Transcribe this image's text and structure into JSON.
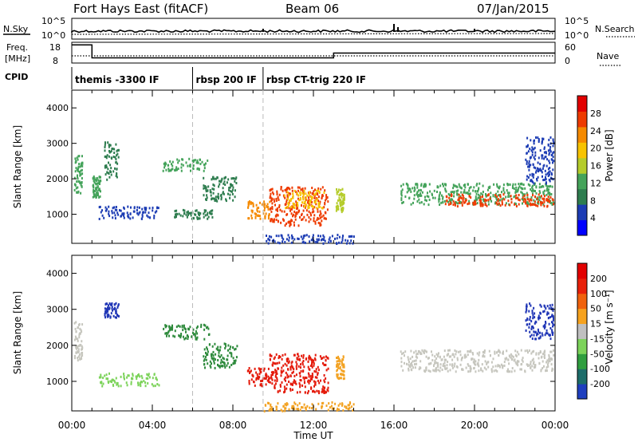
{
  "header": {
    "station": "Fort Hays East (fitACF)",
    "beam": "Beam 06",
    "date": "07/Jan/2015"
  },
  "summary": {
    "nsky_label": "N.Sky",
    "nsearch_label": "N.Search",
    "freq_label_line1": "Freq.",
    "freq_label_line2": "[MHz]",
    "nave_label": "Nave",
    "cpid_label": "CPID",
    "nsky_ticks": [
      "10^5",
      "10^0"
    ],
    "nsearch_ticks": [
      "10^5",
      "10^0"
    ],
    "freq_ticks": [
      "18",
      "8"
    ],
    "nave_ticks": [
      "60",
      "0"
    ],
    "cpid_segments": [
      {
        "start_hour": 0.0,
        "end_hour": 6.0,
        "label": "themis -3300 IF"
      },
      {
        "start_hour": 6.0,
        "end_hour": 9.5,
        "label": "rbsp 200 IF"
      },
      {
        "start_hour": 9.5,
        "end_hour": 24.0,
        "label": "rbsp CT-trig 220 IF"
      }
    ],
    "freq_mhz": [
      {
        "start_hour": 0.0,
        "end_hour": 1.0,
        "value": 17.5
      },
      {
        "start_hour": 1.0,
        "end_hour": 13.0,
        "value": 10.7
      },
      {
        "start_hour": 13.0,
        "end_hour": 24.0,
        "value": 13.2
      }
    ]
  },
  "chart_data": [
    {
      "type": "heatmap",
      "name": "power",
      "ylabel": "Slant Range [km]",
      "xlabel": "Time UT",
      "xlim_hours": [
        0,
        24
      ],
      "ylim_km": [
        180,
        4500
      ],
      "yticks": [
        "1000",
        "2000",
        "3000",
        "4000"
      ],
      "xticks": [
        "00:00",
        "04:00",
        "08:00",
        "12:00",
        "16:00",
        "20:00",
        "00:00"
      ],
      "colorbar_label": "Power [dB]",
      "colorbar_ticks": [
        "28",
        "24",
        "20",
        "16",
        "12",
        "8",
        "4"
      ],
      "colorbar_range": [
        0,
        30
      ],
      "colorbar_colors": [
        "#0000ff",
        "#1c3cb4",
        "#2e7d4f",
        "#44a35a",
        "#b5cc2b",
        "#f7c300",
        "#f58a00",
        "#ee3b00",
        "#e20000"
      ],
      "blobs": [
        {
          "t0": 0.1,
          "t1": 0.5,
          "r0": 1600,
          "r1": 2700,
          "level": 12
        },
        {
          "t0": 1.0,
          "t1": 1.4,
          "r0": 1500,
          "r1": 2100,
          "level": 10
        },
        {
          "t0": 1.6,
          "t1": 2.3,
          "r0": 2000,
          "r1": 3100,
          "level": 8
        },
        {
          "t0": 1.3,
          "t1": 4.3,
          "r0": 900,
          "r1": 1250,
          "level": 6
        },
        {
          "t0": 4.5,
          "t1": 6.8,
          "r0": 2250,
          "r1": 2600,
          "level": 12
        },
        {
          "t0": 5.0,
          "t1": 7.0,
          "r0": 900,
          "r1": 1150,
          "level": 7
        },
        {
          "t0": 6.5,
          "t1": 8.2,
          "r0": 1400,
          "r1": 2100,
          "level": 8
        },
        {
          "t0": 8.7,
          "t1": 9.8,
          "r0": 900,
          "r1": 1400,
          "level": 22
        },
        {
          "t0": 9.8,
          "t1": 12.7,
          "r0": 700,
          "r1": 1800,
          "level": 26
        },
        {
          "t0": 10.5,
          "t1": 12.5,
          "r0": 1200,
          "r1": 1700,
          "level": 18
        },
        {
          "t0": 13.1,
          "t1": 13.5,
          "r0": 1100,
          "r1": 1750,
          "level": 14
        },
        {
          "t0": 16.3,
          "t1": 23.9,
          "r0": 1300,
          "r1": 1900,
          "level": 10
        },
        {
          "t0": 18.5,
          "t1": 23.9,
          "r0": 1250,
          "r1": 1600,
          "level": 24
        },
        {
          "t0": 22.5,
          "t1": 23.9,
          "r0": 1900,
          "r1": 3200,
          "level": 6
        },
        {
          "t0": 9.5,
          "t1": 14.0,
          "r0": 200,
          "r1": 450,
          "level": 6
        }
      ]
    },
    {
      "type": "heatmap",
      "name": "velocity",
      "ylabel": "Slant Range [km]",
      "xlabel": "Time UT",
      "xlim_hours": [
        0,
        24
      ],
      "ylim_km": [
        180,
        4500
      ],
      "yticks": [
        "1000",
        "2000",
        "3000",
        "4000"
      ],
      "xticks": [
        "00:00",
        "04:00",
        "08:00",
        "12:00",
        "16:00",
        "20:00",
        "00:00"
      ],
      "colorbar_label": "Velocity [m s⁻¹]",
      "colorbar_ticks": [
        "200",
        "100",
        "50",
        "15",
        "-15",
        "-50",
        "-100",
        "-200"
      ],
      "colorbar_colors": [
        "#1f3fbf",
        "#1d6d6a",
        "#2f9e3f",
        "#7cd35a",
        "#c0c0c0",
        "#f6a21e",
        "#f0620d",
        "#e8200a",
        "#e20000"
      ],
      "blobs": [
        {
          "t0": 0.1,
          "t1": 0.5,
          "r0": 1600,
          "r1": 2700,
          "level": "gray"
        },
        {
          "t0": 1.6,
          "t1": 2.3,
          "r0": 2800,
          "r1": 3200,
          "level": "blue"
        },
        {
          "t0": 1.3,
          "t1": 4.3,
          "r0": 900,
          "r1": 1250,
          "level": "lightgreen"
        },
        {
          "t0": 4.5,
          "t1": 6.8,
          "r0": 2200,
          "r1": 2600,
          "level": "green"
        },
        {
          "t0": 6.5,
          "t1": 8.2,
          "r0": 1400,
          "r1": 2100,
          "level": "green"
        },
        {
          "t0": 8.7,
          "t1": 9.8,
          "r0": 900,
          "r1": 1400,
          "level": "red"
        },
        {
          "t0": 9.8,
          "t1": 12.7,
          "r0": 700,
          "r1": 1800,
          "level": "red"
        },
        {
          "t0": 13.1,
          "t1": 13.5,
          "r0": 1100,
          "r1": 1750,
          "level": "orange"
        },
        {
          "t0": 16.3,
          "t1": 23.9,
          "r0": 1300,
          "r1": 1900,
          "level": "gray"
        },
        {
          "t0": 22.5,
          "t1": 23.9,
          "r0": 2200,
          "r1": 3200,
          "level": "blue"
        },
        {
          "t0": 9.5,
          "t1": 14.0,
          "r0": 200,
          "r1": 450,
          "level": "orange"
        }
      ]
    }
  ]
}
